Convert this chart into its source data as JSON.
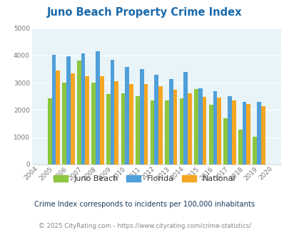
{
  "title": "Juno Beach Property Crime Index",
  "years": [
    2004,
    2005,
    2006,
    2007,
    2008,
    2009,
    2010,
    2011,
    2012,
    2013,
    2014,
    2015,
    2016,
    2017,
    2018,
    2019,
    2020
  ],
  "juno_beach": [
    null,
    2420,
    3000,
    3820,
    3000,
    2580,
    2620,
    2500,
    2340,
    2340,
    2420,
    2760,
    2200,
    1700,
    1280,
    1010,
    null
  ],
  "florida": [
    null,
    4020,
    3980,
    4080,
    4160,
    3840,
    3580,
    3500,
    3300,
    3130,
    3390,
    2800,
    2680,
    2500,
    2300,
    2300,
    null
  ],
  "national": [
    null,
    3450,
    3350,
    3250,
    3230,
    3050,
    2960,
    2940,
    2870,
    2730,
    2600,
    2490,
    2460,
    2340,
    2210,
    2140,
    null
  ],
  "bar_width": 0.28,
  "juno_color": "#8dc63f",
  "florida_color": "#4f9fda",
  "national_color": "#f5a623",
  "bg_color": "#e8f4f8",
  "ylim": [
    0,
    5000
  ],
  "yticks": [
    0,
    1000,
    2000,
    3000,
    4000,
    5000
  ],
  "legend_labels": [
    "Juno Beach",
    "Florida",
    "National"
  ],
  "subtitle": "Crime Index corresponds to incidents per 100,000 inhabitants",
  "footer": "© 2025 CityRating.com - https://www.cityrating.com/crime-statistics/",
  "title_color": "#1a6aab",
  "subtitle_color": "#1a3a5c",
  "footer_color": "#888888",
  "footer_link_color": "#4f9fda"
}
